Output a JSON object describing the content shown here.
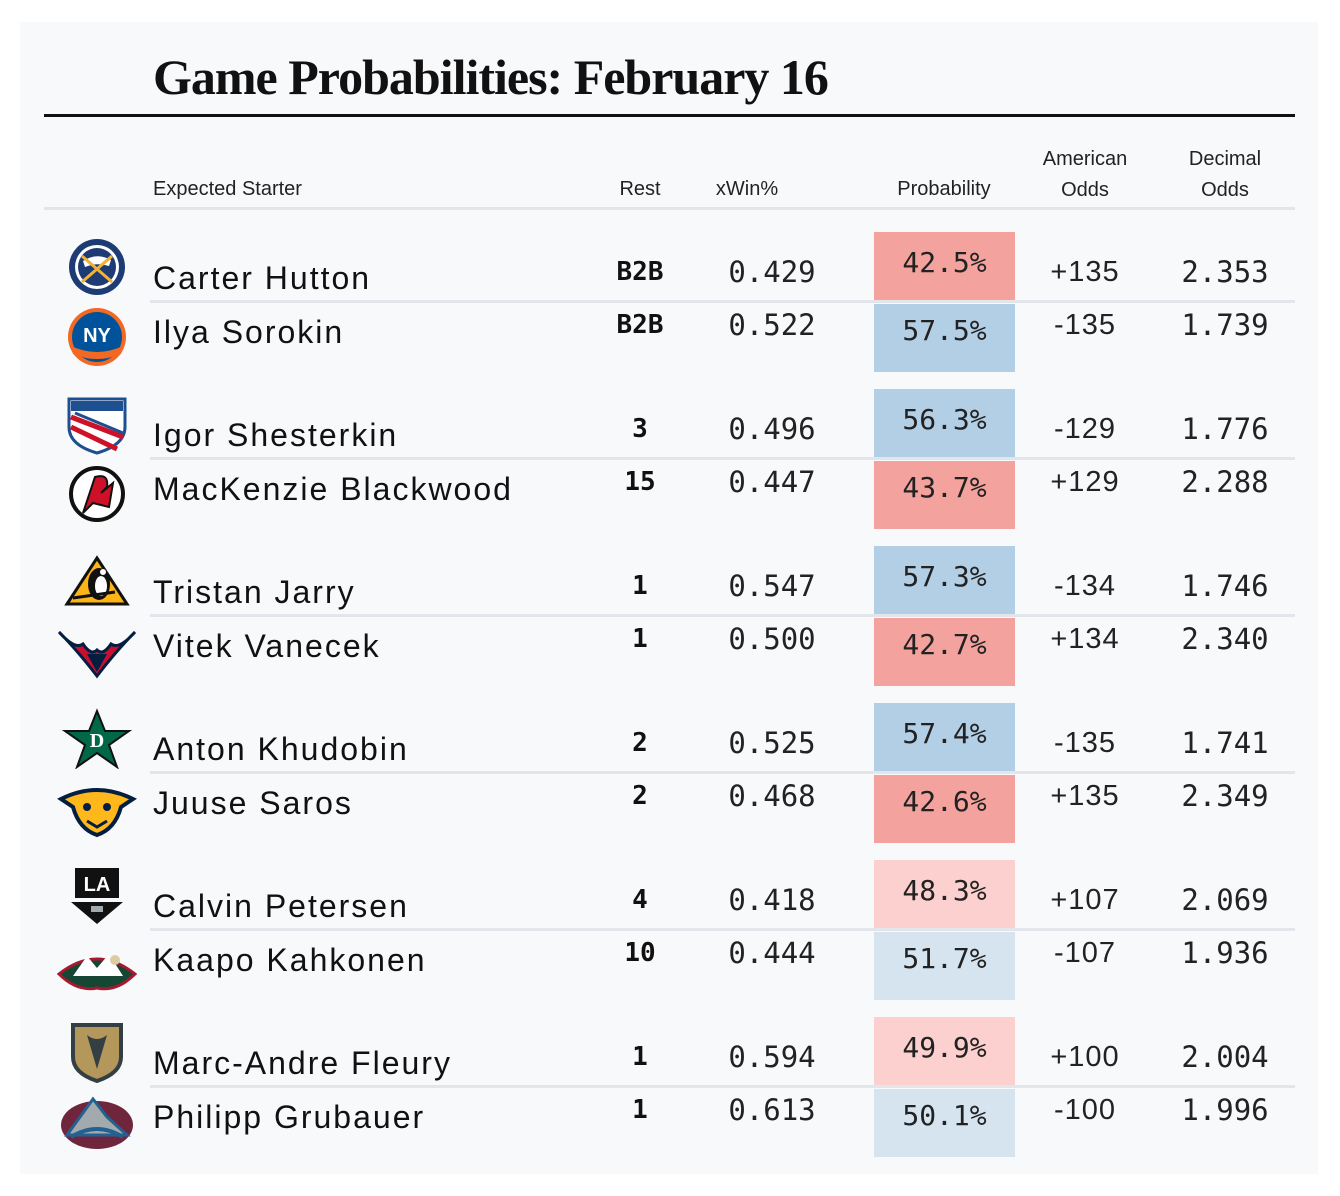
{
  "title": "Game Probabilities: February 16",
  "chart_data": {
    "type": "table",
    "columns": [
      "Expected Starter",
      "Rest",
      "xWin%",
      "Probability",
      "American Odds",
      "Decimal Odds"
    ],
    "colors": {
      "strong_red": "#f4a29e",
      "light_red": "#fbd0ce",
      "strong_blue": "#b3cfe5",
      "light_blue": "#d6e4f0"
    },
    "games": [
      {
        "rows": [
          {
            "team_logo": "sabres-logo",
            "starter": "Carter Hutton",
            "rest": "B2B",
            "xwin": "0.429",
            "probability": "42.5%",
            "prob_value": 42.5,
            "american": "+135",
            "decimal": "2.353"
          },
          {
            "team_logo": "islanders-logo",
            "starter": "Ilya Sorokin",
            "rest": "B2B",
            "xwin": "0.522",
            "probability": "57.5%",
            "prob_value": 57.5,
            "american": "-135",
            "decimal": "1.739"
          }
        ]
      },
      {
        "rows": [
          {
            "team_logo": "rangers-logo",
            "starter": "Igor Shesterkin",
            "rest": "3",
            "xwin": "0.496",
            "probability": "56.3%",
            "prob_value": 56.3,
            "american": "-129",
            "decimal": "1.776"
          },
          {
            "team_logo": "devils-logo",
            "starter": "MacKenzie Blackwood",
            "rest": "15",
            "xwin": "0.447",
            "probability": "43.7%",
            "prob_value": 43.7,
            "american": "+129",
            "decimal": "2.288"
          }
        ]
      },
      {
        "rows": [
          {
            "team_logo": "penguins-logo",
            "starter": "Tristan Jarry",
            "rest": "1",
            "xwin": "0.547",
            "probability": "57.3%",
            "prob_value": 57.3,
            "american": "-134",
            "decimal": "1.746"
          },
          {
            "team_logo": "capitals-logo",
            "starter": "Vitek Vanecek",
            "rest": "1",
            "xwin": "0.500",
            "probability": "42.7%",
            "prob_value": 42.7,
            "american": "+134",
            "decimal": "2.340"
          }
        ]
      },
      {
        "rows": [
          {
            "team_logo": "stars-logo",
            "starter": "Anton Khudobin",
            "rest": "2",
            "xwin": "0.525",
            "probability": "57.4%",
            "prob_value": 57.4,
            "american": "-135",
            "decimal": "1.741"
          },
          {
            "team_logo": "predators-logo",
            "starter": "Juuse Saros",
            "rest": "2",
            "xwin": "0.468",
            "probability": "42.6%",
            "prob_value": 42.6,
            "american": "+135",
            "decimal": "2.349"
          }
        ]
      },
      {
        "rows": [
          {
            "team_logo": "kings-logo",
            "starter": "Calvin Petersen",
            "rest": "4",
            "xwin": "0.418",
            "probability": "48.3%",
            "prob_value": 48.3,
            "american": "+107",
            "decimal": "2.069"
          },
          {
            "team_logo": "wild-logo",
            "starter": "Kaapo Kahkonen",
            "rest": "10",
            "xwin": "0.444",
            "probability": "51.7%",
            "prob_value": 51.7,
            "american": "-107",
            "decimal": "1.936"
          }
        ]
      },
      {
        "rows": [
          {
            "team_logo": "golden-knights-logo",
            "starter": "Marc-Andre Fleury",
            "rest": "1",
            "xwin": "0.594",
            "probability": "49.9%",
            "prob_value": 49.9,
            "american": "+100",
            "decimal": "2.004"
          },
          {
            "team_logo": "avalanche-logo",
            "starter": "Philipp Grubauer",
            "rest": "1",
            "xwin": "0.613",
            "probability": "50.1%",
            "prob_value": 50.1,
            "american": "-100",
            "decimal": "1.996"
          }
        ]
      }
    ]
  }
}
